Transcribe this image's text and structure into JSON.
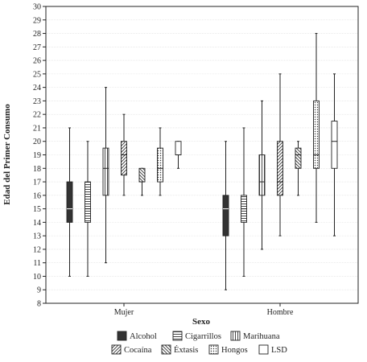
{
  "chart_data": {
    "type": "boxplot",
    "xlabel": "Sexo",
    "ylabel": "Edad del Primer Consumo",
    "ylim": [
      8,
      30
    ],
    "yticks": [
      8,
      9,
      10,
      11,
      12,
      13,
      14,
      15,
      16,
      17,
      18,
      19,
      20,
      21,
      22,
      23,
      24,
      25,
      26,
      27,
      28,
      29,
      30
    ],
    "categories": [
      "Mujer",
      "Hombre"
    ],
    "legend_position": "bottom",
    "series": [
      {
        "name": "Alcohol",
        "pattern": "solid",
        "color": "#333333",
        "boxes": [
          {
            "min": 10,
            "q1": 14,
            "median": 15,
            "q3": 17,
            "max": 21
          },
          {
            "min": 9,
            "q1": 13,
            "median": 15,
            "q3": 16,
            "max": 20
          }
        ]
      },
      {
        "name": "Cigarrillos",
        "pattern": "hlines",
        "color": "#555555",
        "boxes": [
          {
            "min": 10,
            "q1": 14,
            "median": 15,
            "q3": 17,
            "max": 20
          },
          {
            "min": 10,
            "q1": 14,
            "median": 15,
            "q3": 16,
            "max": 21
          }
        ]
      },
      {
        "name": "Marihuana",
        "pattern": "vlines",
        "color": "#666666",
        "boxes": [
          {
            "min": 11,
            "q1": 16,
            "median": 18,
            "q3": 19.5,
            "max": 24
          },
          {
            "min": 12,
            "q1": 16,
            "median": 17,
            "q3": 19,
            "max": 23
          }
        ]
      },
      {
        "name": "Cocaína",
        "pattern": "diag",
        "color": "#777777",
        "boxes": [
          {
            "min": 16,
            "q1": 17.5,
            "median": 19,
            "q3": 20,
            "max": 22
          },
          {
            "min": 13,
            "q1": 16,
            "median": 17,
            "q3": 20,
            "max": 25
          }
        ]
      },
      {
        "name": "Éxtasis",
        "pattern": "diag2",
        "color": "#777777",
        "boxes": [
          {
            "min": 16,
            "q1": 17,
            "median": 17,
            "q3": 18,
            "max": 18
          },
          {
            "min": 16,
            "q1": 18,
            "median": 19,
            "q3": 19.5,
            "max": 20
          }
        ]
      },
      {
        "name": "Hongos",
        "pattern": "dots",
        "color": "#888888",
        "boxes": [
          {
            "min": 16,
            "q1": 17,
            "median": 18,
            "q3": 19.5,
            "max": 21
          },
          {
            "min": 14,
            "q1": 18,
            "median": 19,
            "q3": 23,
            "max": 28
          }
        ]
      },
      {
        "name": "LSD",
        "pattern": "none",
        "color": "#ffffff",
        "boxes": [
          {
            "min": 18,
            "q1": 19,
            "median": 19,
            "q3": 20,
            "max": 20
          },
          {
            "min": 13,
            "q1": 18,
            "median": 20,
            "q3": 21.5,
            "max": 25
          }
        ]
      }
    ]
  }
}
